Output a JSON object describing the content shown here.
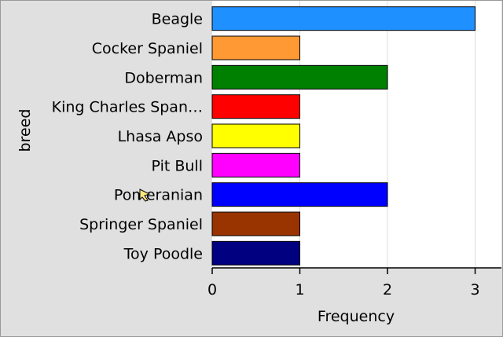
{
  "chart_data": {
    "type": "bar",
    "orientation": "horizontal",
    "categories": [
      "Beagle",
      "Cocker Spaniel",
      "Doberman",
      "King Charles Span…",
      "Lhasa Apso",
      "Pit Bull",
      "Pomeranian",
      "Springer Spaniel",
      "Toy Poodle"
    ],
    "values": [
      3,
      1,
      2,
      1,
      1,
      1,
      2,
      1,
      1
    ],
    "colors": [
      "#1e90ff",
      "#ff9933",
      "#008000",
      "#ff0000",
      "#ffff00",
      "#ff00ff",
      "#0000ff",
      "#993300",
      "#000080"
    ],
    "xlabel": "Frequency",
    "ylabel": "breed",
    "xlim": [
      0,
      3.3
    ],
    "xticks": [
      "0",
      "1",
      "2",
      "3"
    ],
    "grid": "vertical",
    "legend": "none"
  }
}
